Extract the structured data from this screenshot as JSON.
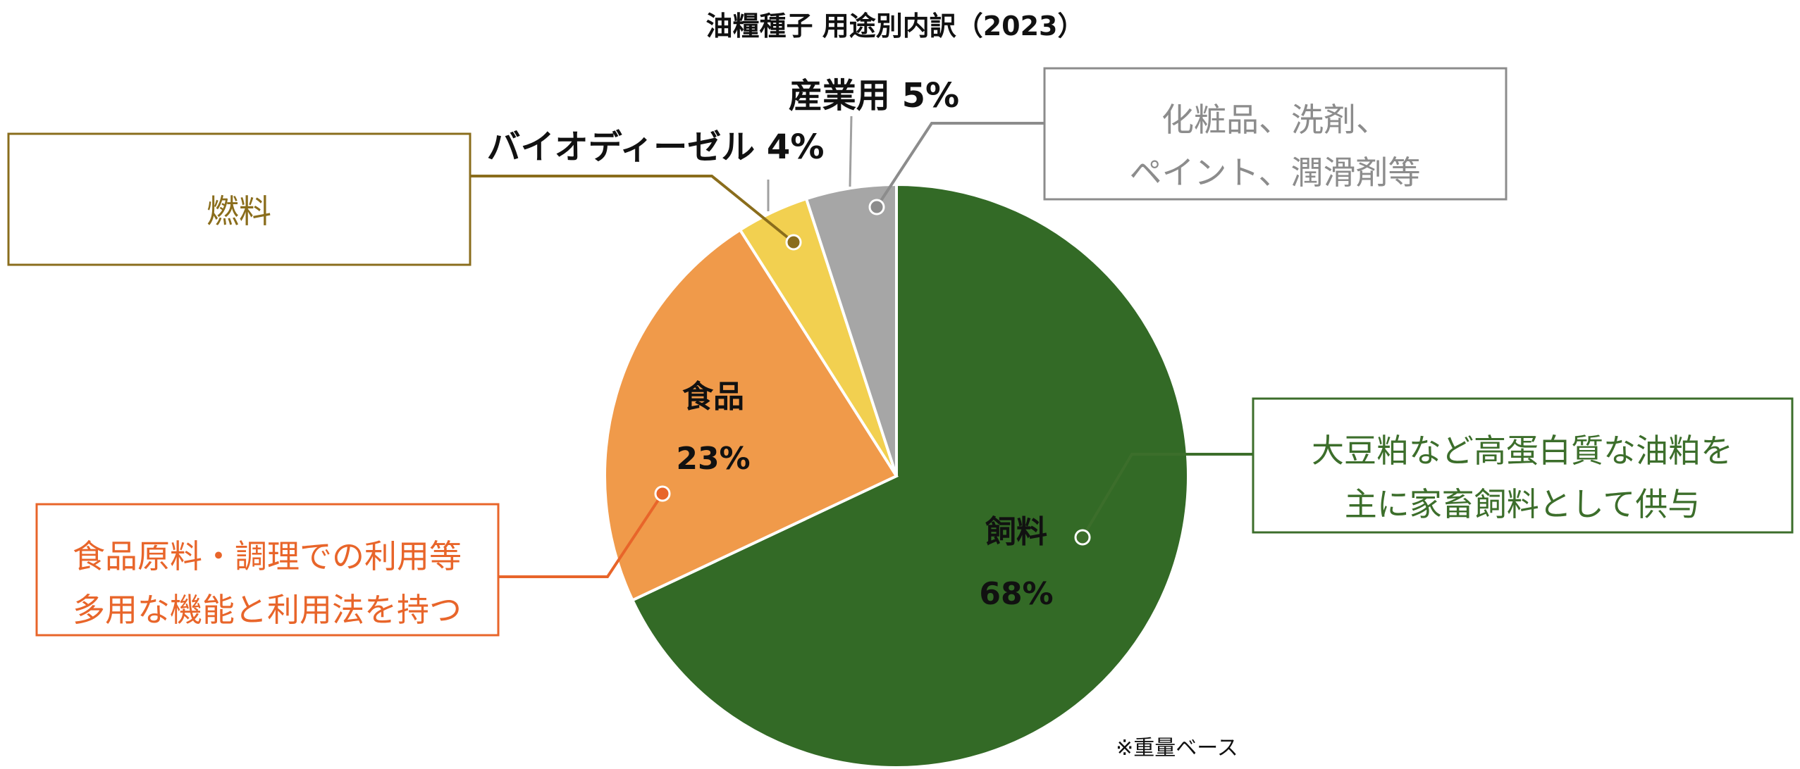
{
  "chart_data": {
    "type": "pie",
    "title": "油糧種子 用途別内訳（2023）",
    "unit": "%",
    "slices": [
      {
        "label": "飼料",
        "value": 68,
        "value_label": "68%",
        "color": "#336a26",
        "callout": "大豆粕など高蛋白質な油粕を\n主に家畜飼料として供与",
        "callout_color": "#3c6e2b"
      },
      {
        "label": "食品",
        "value": 23,
        "value_label": "23%",
        "color": "#f09a4a",
        "callout": "食品原料・調理での利用等\n多用な機能と利用法を持つ",
        "callout_color": "#e8652a"
      },
      {
        "label": "バイオディーゼル",
        "value": 4,
        "value_label": "4%",
        "color": "#f2d050",
        "callout": "燃料",
        "callout_color": "#8a6d1c"
      },
      {
        "label": "産業用",
        "value": 5,
        "value_label": "5%",
        "color": "#a6a6a6",
        "callout": "化粧品、洗剤、\nペイント、潤滑剤等",
        "callout_color": "#8c8c8c"
      }
    ],
    "note": "※重量ベース"
  }
}
